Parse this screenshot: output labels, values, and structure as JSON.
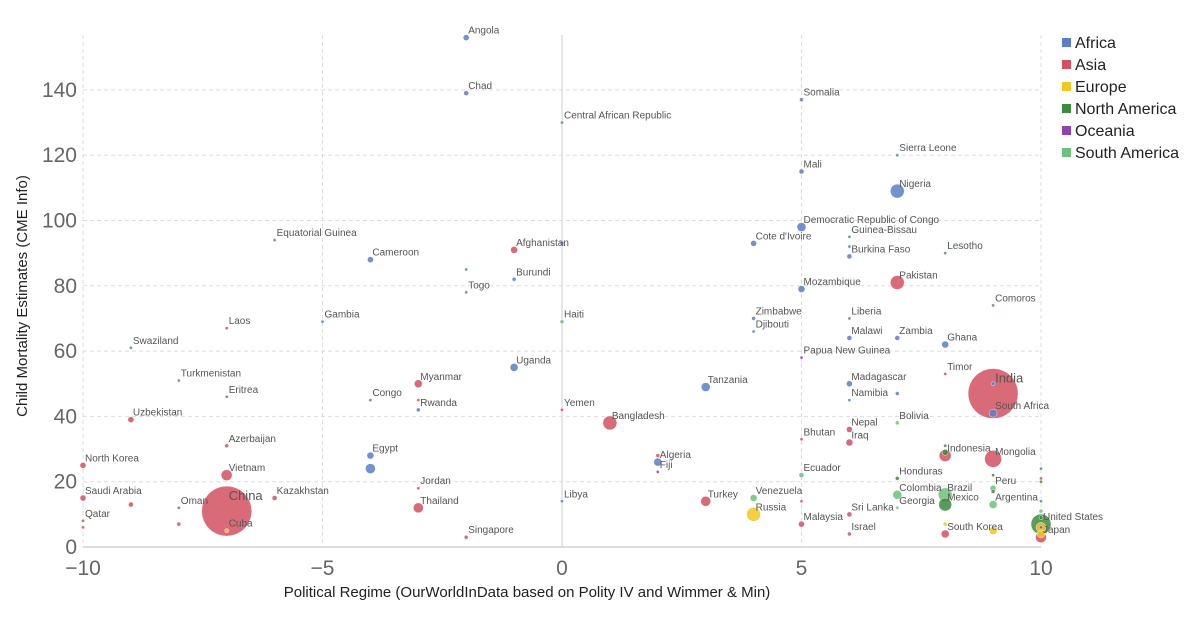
{
  "chart_data": {
    "type": "scatter",
    "title": "",
    "xlabel": "Political Regime (OurWorldInData based on Polity IV and Wimmer & Min)",
    "ylabel": "Child Mortality Estimates (CME Info)",
    "xlim": [
      -10,
      10
    ],
    "ylim": [
      0,
      156
    ],
    "x_ticks": [
      -10,
      -5,
      0,
      5,
      10
    ],
    "y_ticks": [
      0,
      20,
      40,
      60,
      80,
      100,
      120,
      140
    ],
    "grid": true,
    "legend_position": "top-right",
    "size_encodes": "population",
    "series": [
      {
        "name": "Africa",
        "color": "#5b7ec7",
        "points": [
          {
            "label": "Angola",
            "x": -2,
            "y": 156,
            "size": 6
          },
          {
            "label": "Chad",
            "x": -2,
            "y": 139,
            "size": 5
          },
          {
            "label": "Somalia",
            "x": 5,
            "y": 137,
            "size": 4
          },
          {
            "label": "Central African Republic",
            "x": 0,
            "y": 130,
            "size": 3
          },
          {
            "label": "Sierra Leone",
            "x": 7,
            "y": 120,
            "size": 3
          },
          {
            "label": "Mali",
            "x": 5,
            "y": 115,
            "size": 5
          },
          {
            "label": "Nigeria",
            "x": 7,
            "y": 109,
            "size": 14
          },
          {
            "label": "Democratic Republic of Congo",
            "x": 5,
            "y": 98,
            "size": 9
          },
          {
            "label": "Equatorial Guinea",
            "x": -6,
            "y": 94,
            "size": 2
          },
          {
            "label": "",
            "x": 0,
            "y": 93,
            "size": 4
          },
          {
            "label": "Cote d'Ivoire",
            "x": 4,
            "y": 93,
            "size": 6
          },
          {
            "label": "Guinea-Bissau",
            "x": 6,
            "y": 95,
            "size": 3
          },
          {
            "label": "",
            "x": 6,
            "y": 92,
            "size": 3
          },
          {
            "label": "Burkina Faso",
            "x": 6,
            "y": 89,
            "size": 5
          },
          {
            "label": "Lesotho",
            "x": 8,
            "y": 90,
            "size": 2
          },
          {
            "label": "Cameroon",
            "x": -4,
            "y": 88,
            "size": 6
          },
          {
            "label": "",
            "x": -2,
            "y": 85,
            "size": 3
          },
          {
            "label": "Burundi",
            "x": -1,
            "y": 82,
            "size": 4
          },
          {
            "label": "Togo",
            "x": -2,
            "y": 78,
            "size": 3
          },
          {
            "label": "Mozambique",
            "x": 5,
            "y": 79,
            "size": 7
          },
          {
            "label": "Comoros",
            "x": 9,
            "y": 74,
            "size": 2
          },
          {
            "label": "Gambia",
            "x": -5,
            "y": 69,
            "size": 2
          },
          {
            "label": "Zimbabwe",
            "x": 4,
            "y": 70,
            "size": 4
          },
          {
            "label": "Liberia",
            "x": 6,
            "y": 70,
            "size": 3
          },
          {
            "label": "Djibouti",
            "x": 4,
            "y": 66,
            "size": 2
          },
          {
            "label": "Malawi",
            "x": 6,
            "y": 64,
            "size": 5
          },
          {
            "label": "Zambia",
            "x": 7,
            "y": 64,
            "size": 5
          },
          {
            "label": "Ghana",
            "x": 8,
            "y": 62,
            "size": 7
          },
          {
            "label": "Swaziland",
            "x": -9,
            "y": 61,
            "size": 2
          },
          {
            "label": "Uganda",
            "x": -1,
            "y": 55,
            "size": 8
          },
          {
            "label": "Tanzania",
            "x": 3,
            "y": 49,
            "size": 9
          },
          {
            "label": "Madagascar",
            "x": 6,
            "y": 50,
            "size": 6
          },
          {
            "label": "",
            "x": 7,
            "y": 47,
            "size": 4
          },
          {
            "label": "Eritrea",
            "x": -7,
            "y": 46,
            "size": 3
          },
          {
            "label": "Congo",
            "x": -4,
            "y": 45,
            "size": 3
          },
          {
            "label": "Namibia",
            "x": 6,
            "y": 45,
            "size": 2
          },
          {
            "label": "South Africa",
            "x": 9,
            "y": 41,
            "size": 8
          },
          {
            "label": "Rwanda",
            "x": -3,
            "y": 42,
            "size": 4
          },
          {
            "label": "",
            "x": 9,
            "y": 50,
            "size": 4
          },
          {
            "label": "Egypt",
            "x": -4,
            "y": 28,
            "size": 7
          },
          {
            "label": "",
            "x": -4,
            "y": 24,
            "size": 10
          },
          {
            "label": "Algeria",
            "x": 2,
            "y": 26,
            "size": 8
          },
          {
            "label": "",
            "x": 10,
            "y": 24,
            "size": 3
          },
          {
            "label": "Libya",
            "x": 0,
            "y": 14,
            "size": 3
          },
          {
            "label": "",
            "x": 10,
            "y": 14,
            "size": 2
          }
        ]
      },
      {
        "name": "Asia",
        "color": "#d1515f",
        "points": [
          {
            "label": "Afghanistan",
            "x": -1,
            "y": 91,
            "size": 7
          },
          {
            "label": "Pakistan",
            "x": 7,
            "y": 81,
            "size": 14
          },
          {
            "label": "Laos",
            "x": -7,
            "y": 67,
            "size": 3
          },
          {
            "label": "Timor",
            "x": 8,
            "y": 53,
            "size": 2
          },
          {
            "label": "India",
            "x": 9,
            "y": 47,
            "size": 50
          },
          {
            "label": "Turkmenistan",
            "x": -8,
            "y": 51,
            "size": 3
          },
          {
            "label": "Myanmar",
            "x": -3,
            "y": 50,
            "size": 8
          },
          {
            "label": "",
            "x": -3,
            "y": 45,
            "size": 2
          },
          {
            "label": "Uzbekistan",
            "x": -9,
            "y": 39,
            "size": 6
          },
          {
            "label": "Yemen",
            "x": 0,
            "y": 42,
            "size": 3
          },
          {
            "label": "Bangladesh",
            "x": 1,
            "y": 38,
            "size": 14
          },
          {
            "label": "Nepal",
            "x": 6,
            "y": 36,
            "size": 6
          },
          {
            "label": "Bhutan",
            "x": 5,
            "y": 33,
            "size": 2
          },
          {
            "label": "Iraq",
            "x": 6,
            "y": 32,
            "size": 7
          },
          {
            "label": "Azerbaijan",
            "x": -7,
            "y": 31,
            "size": 4
          },
          {
            "label": "Indonesia",
            "x": 8,
            "y": 28,
            "size": 12
          },
          {
            "label": "",
            "x": 2,
            "y": 28,
            "size": 4
          },
          {
            "label": "Mongolia",
            "x": 9,
            "y": 27,
            "size": 17
          },
          {
            "label": "North Korea",
            "x": -10,
            "y": 25,
            "size": 6
          },
          {
            "label": "Vietnam",
            "x": -7,
            "y": 22,
            "size": 11
          },
          {
            "label": "",
            "x": 10,
            "y": 21,
            "size": 3
          },
          {
            "label": "Jordan",
            "x": -3,
            "y": 18,
            "size": 3
          },
          {
            "label": "Kazakhstan",
            "x": -6,
            "y": 15,
            "size": 5
          },
          {
            "label": "Saudi Arabia",
            "x": -10,
            "y": 15,
            "size": 6
          },
          {
            "label": "China",
            "x": -7,
            "y": 11,
            "size": 50
          },
          {
            "label": "Oman",
            "x": -8,
            "y": 12,
            "size": 3
          },
          {
            "label": "",
            "x": -9,
            "y": 13,
            "size": 5
          },
          {
            "label": "Thailand",
            "x": -3,
            "y": 12,
            "size": 10
          },
          {
            "label": "Turkey",
            "x": 3,
            "y": 14,
            "size": 10
          },
          {
            "label": "",
            "x": 5,
            "y": 14,
            "size": 2
          },
          {
            "label": "Sri Lanka",
            "x": 6,
            "y": 10,
            "size": 5
          },
          {
            "label": "Malaysia",
            "x": 5,
            "y": 7,
            "size": 6
          },
          {
            "label": "Qatar",
            "x": -10,
            "y": 8,
            "size": 2
          },
          {
            "label": "",
            "x": -10,
            "y": 6,
            "size": 3
          },
          {
            "label": "",
            "x": -8,
            "y": 7,
            "size": 4
          },
          {
            "label": "Israel",
            "x": 6,
            "y": 4,
            "size": 4
          },
          {
            "label": "Singapore",
            "x": -2,
            "y": 3,
            "size": 4
          },
          {
            "label": "South Korea",
            "x": 8,
            "y": 4,
            "size": 8
          },
          {
            "label": "Japan",
            "x": 10,
            "y": 3,
            "size": 11
          }
        ]
      },
      {
        "name": "Europe",
        "color": "#f2c623",
        "points": [
          {
            "label": "Russia",
            "x": 4,
            "y": 10,
            "size": 14
          },
          {
            "label": "Cuba",
            "x": -7,
            "y": 5,
            "size": 4
          },
          {
            "label": "",
            "x": 8,
            "y": 7,
            "size": 4
          },
          {
            "label": "",
            "x": 9,
            "y": 5,
            "size": 8
          },
          {
            "label": "",
            "x": 10,
            "y": 6,
            "size": 10
          },
          {
            "label": "",
            "x": 10,
            "y": 4,
            "size": 8
          }
        ]
      },
      {
        "name": "North America",
        "color": "#3e8a3e",
        "points": [
          {
            "label": "",
            "x": 8,
            "y": 31,
            "size": 3
          },
          {
            "label": "",
            "x": 8,
            "y": 29,
            "size": 6
          },
          {
            "label": "Honduras",
            "x": 7,
            "y": 21,
            "size": 4
          },
          {
            "label": "",
            "x": 9,
            "y": 22,
            "size": 3
          },
          {
            "label": "Mexico",
            "x": 8,
            "y": 13,
            "size": 13
          },
          {
            "label": "",
            "x": 9,
            "y": 17,
            "size": 4
          },
          {
            "label": "United States",
            "x": 10,
            "y": 7,
            "size": 20
          },
          {
            "label": "",
            "x": 10,
            "y": 20,
            "size": 3
          },
          {
            "label": "",
            "x": 10,
            "y": 9,
            "size": 4
          }
        ]
      },
      {
        "name": "Oceania",
        "color": "#8e44ad",
        "points": [
          {
            "label": "Papua New Guinea",
            "x": 5,
            "y": 58,
            "size": 3
          },
          {
            "label": "Fiji",
            "x": 2,
            "y": 23,
            "size": 2
          },
          {
            "label": "",
            "x": 10,
            "y": 6,
            "size": 3
          }
        ]
      },
      {
        "name": "South America",
        "color": "#6cc27a",
        "points": [
          {
            "label": "Haiti",
            "x": 0,
            "y": 69,
            "size": 4
          },
          {
            "label": "Bolivia",
            "x": 7,
            "y": 38,
            "size": 4
          },
          {
            "label": "Ecuador",
            "x": 5,
            "y": 22,
            "size": 5
          },
          {
            "label": "Peru",
            "x": 9,
            "y": 18,
            "size": 6
          },
          {
            "label": "Brazil",
            "x": 8,
            "y": 16,
            "size": 14
          },
          {
            "label": "Colombia",
            "x": 7,
            "y": 16,
            "size": 9
          },
          {
            "label": "Venezuela",
            "x": 4,
            "y": 15,
            "size": 7
          },
          {
            "label": "Argentina",
            "x": 9,
            "y": 13,
            "size": 8
          },
          {
            "label": "Georgia",
            "x": 7,
            "y": 12,
            "size": 3
          },
          {
            "label": "",
            "x": 10,
            "y": 11,
            "size": 4
          }
        ]
      }
    ]
  }
}
